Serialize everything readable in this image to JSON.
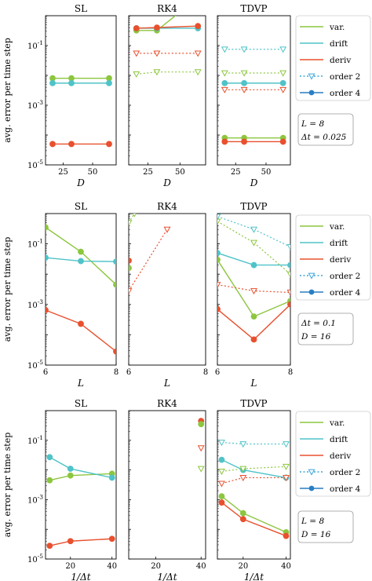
{
  "figure": {
    "ylabel": "avg. error per time step",
    "legend": [
      {
        "label": "var.",
        "color": "#8cc63f",
        "style": "line"
      },
      {
        "label": "drift",
        "color": "#4fc3c8",
        "style": "line"
      },
      {
        "label": "deriv",
        "color": "#e8502e",
        "style": "line"
      },
      {
        "label": "order 2",
        "color": "#3aa6d8",
        "style": "dotted-triangle"
      },
      {
        "label": "order 4",
        "color": "#2a7fc4",
        "style": "solid-circle"
      }
    ],
    "infoboxes": [
      [
        "L = 8",
        "Δt = 0.025"
      ],
      [
        "Δt = 0.1",
        "D = 16"
      ],
      [
        "L = 8",
        "D = 16"
      ]
    ],
    "ytick_labels": [
      "10^-1",
      "10^-3",
      "10^-5"
    ]
  },
  "colors": {
    "var": "#8cc63f",
    "drift": "#4fc3c8",
    "deriv": "#e8502e"
  },
  "chart_data": [
    {
      "type": "line",
      "row": 0,
      "title": "SL",
      "xlabel": "D",
      "xlim": [
        10,
        70
      ],
      "xticks": [
        25,
        50
      ],
      "ylim": [
        -5,
        0
      ],
      "yscale": "log",
      "series": [
        {
          "quantity": "var",
          "order": 4,
          "x": [
            16,
            32,
            64
          ],
          "y": [
            0.008,
            0.008,
            0.008
          ]
        },
        {
          "quantity": "drift",
          "order": 4,
          "x": [
            16,
            32,
            64
          ],
          "y": [
            0.0055,
            0.0055,
            0.0055
          ]
        },
        {
          "quantity": "deriv",
          "order": 4,
          "x": [
            16,
            32,
            64
          ],
          "y": [
            5e-05,
            5e-05,
            5e-05
          ]
        }
      ]
    },
    {
      "type": "line",
      "row": 0,
      "title": "RK4",
      "xlabel": "D",
      "xlim": [
        10,
        70
      ],
      "xticks": [
        25,
        50
      ],
      "ylim": [
        -5,
        0
      ],
      "yscale": "log",
      "series": [
        {
          "quantity": "var",
          "order": 4,
          "x": [
            16,
            32,
            64
          ],
          "y": [
            0.32,
            0.32,
            4.0
          ]
        },
        {
          "quantity": "drift",
          "order": 4,
          "x": [
            16,
            32,
            64
          ],
          "y": [
            0.38,
            0.38,
            0.38
          ]
        },
        {
          "quantity": "deriv",
          "order": 4,
          "x": [
            16,
            32,
            64
          ],
          "y": [
            0.38,
            0.4,
            0.45
          ]
        },
        {
          "quantity": "var",
          "order": 2,
          "x": [
            16,
            32,
            64
          ],
          "y": [
            0.011,
            0.013,
            0.013
          ]
        },
        {
          "quantity": "deriv",
          "order": 2,
          "x": [
            16,
            32,
            64
          ],
          "y": [
            0.055,
            0.055,
            0.055
          ]
        }
      ]
    },
    {
      "type": "line",
      "row": 0,
      "title": "TDVP",
      "xlabel": "D",
      "xlim": [
        10,
        70
      ],
      "xticks": [
        25,
        50
      ],
      "ylim": [
        -5,
        0
      ],
      "yscale": "log",
      "series": [
        {
          "quantity": "drift",
          "order": 2,
          "x": [
            16,
            32,
            64
          ],
          "y": [
            0.075,
            0.075,
            0.075
          ]
        },
        {
          "quantity": "var",
          "order": 2,
          "x": [
            16,
            32,
            64
          ],
          "y": [
            0.012,
            0.012,
            0.012
          ]
        },
        {
          "quantity": "drift",
          "order": 4,
          "x": [
            16,
            32,
            64
          ],
          "y": [
            0.0055,
            0.0055,
            0.0055
          ]
        },
        {
          "quantity": "deriv",
          "order": 2,
          "x": [
            16,
            32,
            64
          ],
          "y": [
            0.0033,
            0.0033,
            0.0033
          ]
        },
        {
          "quantity": "var",
          "order": 4,
          "x": [
            16,
            32,
            64
          ],
          "y": [
            8e-05,
            8e-05,
            8e-05
          ]
        },
        {
          "quantity": "deriv",
          "order": 4,
          "x": [
            16,
            32,
            64
          ],
          "y": [
            6e-05,
            6e-05,
            6e-05
          ]
        }
      ]
    },
    {
      "type": "line",
      "row": 1,
      "title": "SL",
      "xlabel": "L",
      "xlim": [
        6,
        8
      ],
      "xticks": [
        6,
        8
      ],
      "ylim": [
        -5,
        0
      ],
      "yscale": "log",
      "series": [
        {
          "quantity": "var",
          "order": 4,
          "x": [
            6,
            7,
            8
          ],
          "y": [
            0.35,
            0.055,
            0.0045
          ]
        },
        {
          "quantity": "drift",
          "order": 4,
          "x": [
            6,
            7,
            8
          ],
          "y": [
            0.035,
            0.027,
            0.026
          ]
        },
        {
          "quantity": "deriv",
          "order": 4,
          "x": [
            6,
            7,
            8
          ],
          "y": [
            0.00065,
            0.00023,
            2.8e-05
          ]
        }
      ]
    },
    {
      "type": "line",
      "row": 1,
      "title": "RK4",
      "xlabel": "L",
      "xlim": [
        6,
        8
      ],
      "xticks": [
        6,
        8
      ],
      "ylim": [
        -5,
        0
      ],
      "yscale": "log",
      "series": [
        {
          "quantity": "var",
          "order": 2,
          "x": [
            6,
            6.15
          ],
          "y": [
            0.5,
            1.0
          ]
        },
        {
          "quantity": "deriv",
          "order": 2,
          "x": [
            6,
            7
          ],
          "y": [
            0.0028,
            0.3
          ]
        },
        {
          "quantity": "deriv",
          "order": 4,
          "x": [
            6
          ],
          "y": [
            0.028
          ]
        },
        {
          "quantity": "var",
          "order": 4,
          "x": [
            6
          ],
          "y": [
            0.016
          ]
        }
      ]
    },
    {
      "type": "line",
      "row": 1,
      "title": "TDVP",
      "xlabel": "L",
      "xlim": [
        6,
        8
      ],
      "xticks": [
        6,
        8
      ],
      "ylim": [
        -5,
        0
      ],
      "yscale": "log",
      "series": [
        {
          "quantity": "drift",
          "order": 2,
          "x": [
            6,
            7,
            8
          ],
          "y": [
            0.8,
            0.3,
            0.08
          ]
        },
        {
          "quantity": "var",
          "order": 2,
          "x": [
            6,
            7,
            8
          ],
          "y": [
            0.55,
            0.11,
            0.01
          ]
        },
        {
          "quantity": "drift",
          "order": 4,
          "x": [
            6,
            7,
            8
          ],
          "y": [
            0.05,
            0.02,
            0.02
          ]
        },
        {
          "quantity": "var",
          "order": 4,
          "x": [
            6,
            7,
            8
          ],
          "y": [
            0.03,
            0.0004,
            0.0013
          ]
        },
        {
          "quantity": "deriv",
          "order": 2,
          "x": [
            6,
            7,
            8
          ],
          "y": [
            0.0045,
            0.0028,
            0.0025
          ]
        },
        {
          "quantity": "deriv",
          "order": 4,
          "x": [
            6,
            7,
            8
          ],
          "y": [
            0.0007,
            7e-05,
            0.001
          ]
        }
      ]
    },
    {
      "type": "line",
      "row": 2,
      "title": "SL",
      "xlabel": "1/Δt",
      "xlim": [
        8,
        42
      ],
      "xticks": [
        20,
        40
      ],
      "ylim": [
        -5,
        0
      ],
      "yscale": "log",
      "series": [
        {
          "quantity": "var",
          "order": 4,
          "x": [
            10,
            20,
            40
          ],
          "y": [
            0.0045,
            0.0065,
            0.0075
          ]
        },
        {
          "quantity": "drift",
          "order": 4,
          "x": [
            10,
            20,
            40
          ],
          "y": [
            0.027,
            0.011,
            0.0055
          ]
        },
        {
          "quantity": "deriv",
          "order": 4,
          "x": [
            10,
            20,
            40
          ],
          "y": [
            2.8e-05,
            4e-05,
            4.8e-05
          ]
        }
      ]
    },
    {
      "type": "line",
      "row": 2,
      "title": "RK4",
      "xlabel": "1/Δt",
      "xlim": [
        8,
        42
      ],
      "xticks": [
        20,
        40
      ],
      "ylim": [
        -5,
        0
      ],
      "yscale": "log",
      "series": [
        {
          "quantity": "deriv",
          "order": 4,
          "x": [
            40
          ],
          "y": [
            0.45
          ]
        },
        {
          "quantity": "var",
          "order": 4,
          "x": [
            40
          ],
          "y": [
            0.35
          ]
        },
        {
          "quantity": "deriv",
          "order": 2,
          "x": [
            40
          ],
          "y": [
            0.055
          ]
        },
        {
          "quantity": "var",
          "order": 2,
          "x": [
            40
          ],
          "y": [
            0.011
          ]
        }
      ]
    },
    {
      "type": "line",
      "row": 2,
      "title": "TDVP",
      "xlabel": "1/Δt",
      "xlim": [
        8,
        42
      ],
      "xticks": [
        20,
        40
      ],
      "ylim": [
        -5,
        0
      ],
      "yscale": "log",
      "series": [
        {
          "quantity": "drift",
          "order": 2,
          "x": [
            10,
            20,
            40
          ],
          "y": [
            0.085,
            0.075,
            0.075
          ]
        },
        {
          "quantity": "drift",
          "order": 4,
          "x": [
            10,
            20,
            40
          ],
          "y": [
            0.022,
            0.01,
            0.0055
          ]
        },
        {
          "quantity": "var",
          "order": 2,
          "x": [
            10,
            20,
            40
          ],
          "y": [
            0.009,
            0.011,
            0.013
          ]
        },
        {
          "quantity": "deriv",
          "order": 2,
          "x": [
            10,
            20,
            40
          ],
          "y": [
            0.0035,
            0.0055,
            0.0055
          ]
        },
        {
          "quantity": "var",
          "order": 4,
          "x": [
            10,
            20,
            40
          ],
          "y": [
            0.0013,
            0.00035,
            8e-05
          ]
        },
        {
          "quantity": "deriv",
          "order": 4,
          "x": [
            10,
            20,
            40
          ],
          "y": [
            0.0008,
            0.00022,
            6e-05
          ]
        }
      ]
    }
  ]
}
